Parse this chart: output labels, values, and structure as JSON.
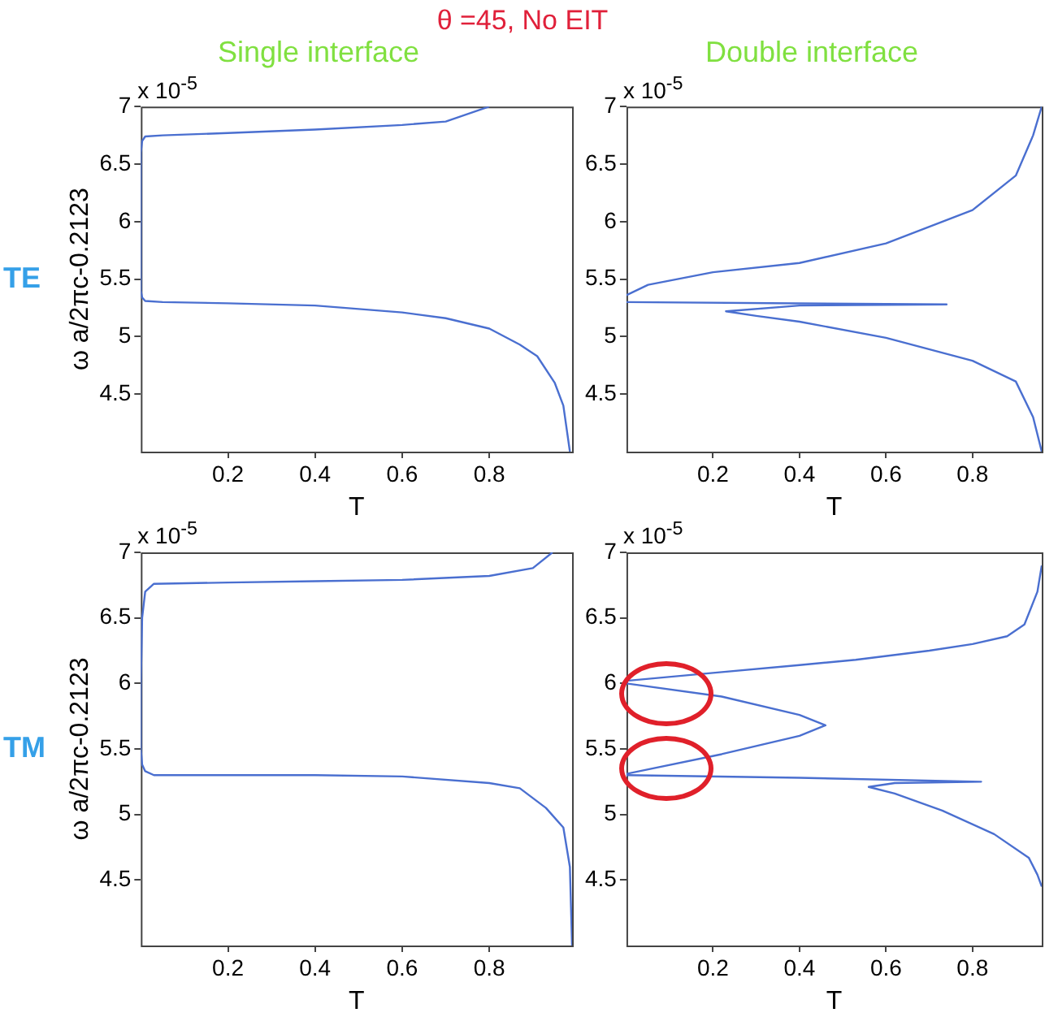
{
  "chart_data": [
    {
      "type": "line",
      "title": "Single interface",
      "xlabel": "T",
      "ylabel": "ω a/2πc-0.2123",
      "annotations": [
        "θ =45,  No EIT",
        "x 10$^{-5}$",
        "TE"
      ],
      "xlim": [
        0,
        0.99
      ],
      "xticks": [
        0.2,
        0.4,
        0.6,
        0.8
      ],
      "ylim": [
        4,
        7
      ],
      "yticks": [
        4.5,
        5,
        5.5,
        6,
        6.5,
        7
      ],
      "grid": false,
      "legend": false,
      "marker": "none",
      "line_style": "solid",
      "series": [
        {
          "color": "#4a6fd0",
          "x": [
            0.8,
            0.7,
            0.6,
            0.4,
            0.2,
            0.05,
            0.01,
            0.003,
            0,
            0,
            0.003,
            0.01,
            0.05,
            0.2,
            0.4,
            0.6,
            0.7,
            0.8,
            0.87,
            0.91,
            0.95,
            0.97,
            0.985
          ],
          "values": [
            7.0,
            6.87,
            6.84,
            6.8,
            6.77,
            6.75,
            6.74,
            6.7,
            6.6,
            5.4,
            5.34,
            5.31,
            5.3,
            5.29,
            5.27,
            5.21,
            5.16,
            5.07,
            4.93,
            4.83,
            4.6,
            4.4,
            4.0
          ]
        }
      ]
    },
    {
      "type": "line",
      "title": "Double interface",
      "xlabel": "T",
      "annotations": [
        "x 10$^{-5}$"
      ],
      "xlim": [
        0,
        0.96
      ],
      "xticks": [
        0.2,
        0.4,
        0.6,
        0.8
      ],
      "ylim": [
        4,
        7
      ],
      "yticks": [
        4.5,
        5,
        5.5,
        6,
        6.5,
        7
      ],
      "grid": false,
      "legend": false,
      "marker": "none",
      "line_style": "solid",
      "series": [
        {
          "color": "#4a6fd0",
          "x": [
            0,
            0.05,
            0.2,
            0.4,
            0.6,
            0.8,
            0.9,
            0.94,
            0.96
          ],
          "values": [
            5.36,
            5.45,
            5.56,
            5.64,
            5.81,
            6.1,
            6.4,
            6.75,
            7.0
          ]
        },
        {
          "color": "#4a6fd0",
          "x": [
            0,
            0.74,
            0.4,
            0.23,
            0.3,
            0.4,
            0.6,
            0.8,
            0.9,
            0.94,
            0.96
          ],
          "values": [
            5.3,
            5.28,
            5.27,
            5.22,
            5.18,
            5.13,
            4.99,
            4.79,
            4.61,
            4.3,
            4.0
          ]
        }
      ]
    },
    {
      "type": "line",
      "xlabel": "T",
      "ylabel": "ω a/2πc-0.2123",
      "annotations": [
        "x 10$^{-5}$",
        "TM"
      ],
      "xlim": [
        0,
        0.99
      ],
      "xticks": [
        0.2,
        0.4,
        0.6,
        0.8
      ],
      "ylim": [
        4,
        7
      ],
      "yticks": [
        4.5,
        5,
        5.5,
        6,
        6.5,
        7
      ],
      "grid": false,
      "legend": false,
      "marker": "none",
      "line_style": "solid",
      "series": [
        {
          "color": "#4a6fd0",
          "x": [
            0.945,
            0.9,
            0.8,
            0.6,
            0.4,
            0.2,
            0.03,
            0.01,
            0.003,
            0,
            0,
            0.003,
            0.01,
            0.03,
            0.2,
            0.4,
            0.6,
            0.8,
            0.87,
            0.93,
            0.97,
            0.985,
            0.99
          ],
          "values": [
            7.0,
            6.88,
            6.82,
            6.79,
            6.78,
            6.77,
            6.76,
            6.7,
            6.5,
            6.0,
            5.5,
            5.38,
            5.33,
            5.3,
            5.3,
            5.3,
            5.29,
            5.24,
            5.2,
            5.05,
            4.9,
            4.6,
            4.0
          ]
        }
      ]
    },
    {
      "type": "line",
      "xlabel": "T",
      "annotations": [
        "x 10$^{-5}$"
      ],
      "xlim": [
        0,
        0.96
      ],
      "xticks": [
        0.2,
        0.4,
        0.6,
        0.8
      ],
      "ylim": [
        4,
        7
      ],
      "yticks": [
        4.5,
        5,
        5.5,
        6,
        6.5,
        7
      ],
      "grid": false,
      "legend": false,
      "marker": "none",
      "line_style": "solid",
      "series": [
        {
          "color": "#4a6fd0",
          "x": [
            0,
            0.2,
            0.4,
            0.53,
            0.7,
            0.8,
            0.88,
            0.92,
            0.95,
            0.96
          ],
          "values": [
            6.02,
            6.08,
            6.14,
            6.18,
            6.25,
            6.3,
            6.36,
            6.45,
            6.7,
            6.9
          ]
        },
        {
          "color": "#4a6fd0",
          "x": [
            0,
            0.22,
            0.4,
            0.46,
            0.4,
            0.22,
            0
          ],
          "values": [
            6.0,
            5.9,
            5.76,
            5.68,
            5.6,
            5.46,
            5.31
          ]
        },
        {
          "color": "#4a6fd0",
          "x": [
            0,
            0.4,
            0.82,
            0.62,
            0.56,
            0.62,
            0.73,
            0.85,
            0.93,
            0.95,
            0.96
          ],
          "values": [
            5.3,
            5.28,
            5.25,
            5.24,
            5.21,
            5.16,
            5.03,
            4.85,
            4.67,
            4.54,
            4.45
          ]
        }
      ]
    }
  ]
}
